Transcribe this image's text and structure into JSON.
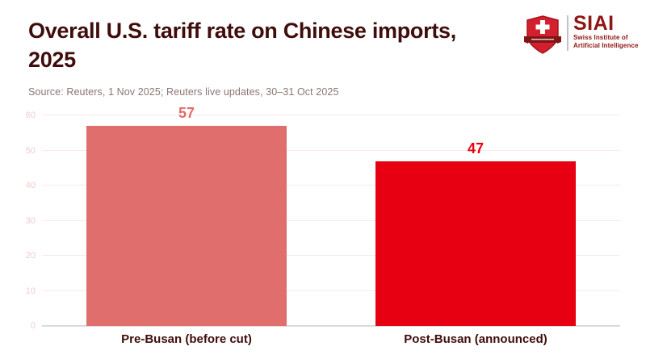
{
  "header": {
    "title_lines": [
      "Overall U.S. tariff rate on Chinese imports,",
      "2025"
    ],
    "source": "Source: Reuters, 1 Nov 2025; Reuters live updates, 30–31 Oct 2025"
  },
  "logo": {
    "wordmark": "SIAI",
    "subtitle_line1": "Swiss Institute of",
    "subtitle_line2": "Artificial Intelligence",
    "shield_icon": "swiss-shield-cross-icon",
    "colors": {
      "shield_red": "#d2202e",
      "shield_dark": "#a8141f",
      "banner_dark": "#7c1617",
      "wordmark_red": "#8e1511"
    }
  },
  "chart_data": {
    "type": "bar",
    "title": "Overall U.S. tariff rate on Chinese imports, 2025",
    "categories": [
      "Pre-Busan (before cut)",
      "Post-Busan (announced)"
    ],
    "values": [
      57,
      47
    ],
    "value_labels": [
      "57",
      "47"
    ],
    "bar_colors": [
      "#e06e6c",
      "#e60012"
    ],
    "value_label_colors": [
      "#e06e6c",
      "#e60012"
    ],
    "xlabel": "",
    "ylabel": "",
    "ylim": [
      0,
      60
    ],
    "ytick_step": 10,
    "ytick_labels": [
      "0",
      "10",
      "20",
      "30",
      "40",
      "50",
      "60"
    ],
    "grid": true,
    "legend": "none"
  },
  "colors": {
    "title_text": "#3f0d0c",
    "source_text": "#8d7474",
    "category_text": "#3f0d0c",
    "gridline": "#fbe8e8",
    "axis_line": "#dadada",
    "ytick_text": "#f4cbcb",
    "background": "#ffffff"
  }
}
